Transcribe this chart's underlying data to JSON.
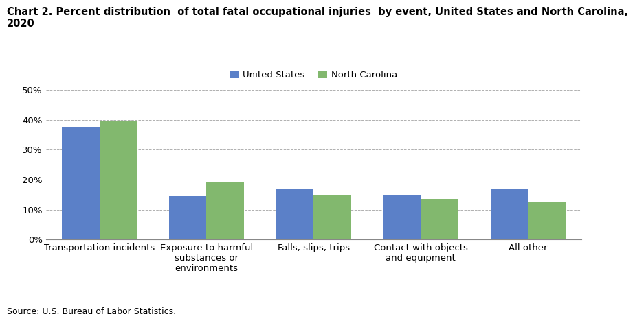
{
  "title_line1": "Chart 2. Percent distribution  of total fatal occupational injuries  by event, United States and North Carolina,",
  "title_line2": "2020",
  "categories": [
    "Transportation incidents",
    "Exposure to harmful\nsubstances or\nenvironments",
    "Falls, slips, trips",
    "Contact with objects\nand equipment",
    "All other"
  ],
  "us_values": [
    37.5,
    14.5,
    17.0,
    15.0,
    16.7
  ],
  "nc_values": [
    39.7,
    19.2,
    15.0,
    13.7,
    12.7
  ],
  "us_color": "#5b80c8",
  "nc_color": "#82b86e",
  "us_label": "United States",
  "nc_label": "North Carolina",
  "ylim": [
    0,
    50
  ],
  "yticks": [
    0,
    10,
    20,
    30,
    40,
    50
  ],
  "source": "Source: U.S. Bureau of Labor Statistics.",
  "bar_width": 0.35,
  "background_color": "#ffffff",
  "grid_color": "#b0b0b0",
  "title_fontsize": 10.5,
  "tick_fontsize": 9.5,
  "legend_fontsize": 9.5,
  "source_fontsize": 9
}
